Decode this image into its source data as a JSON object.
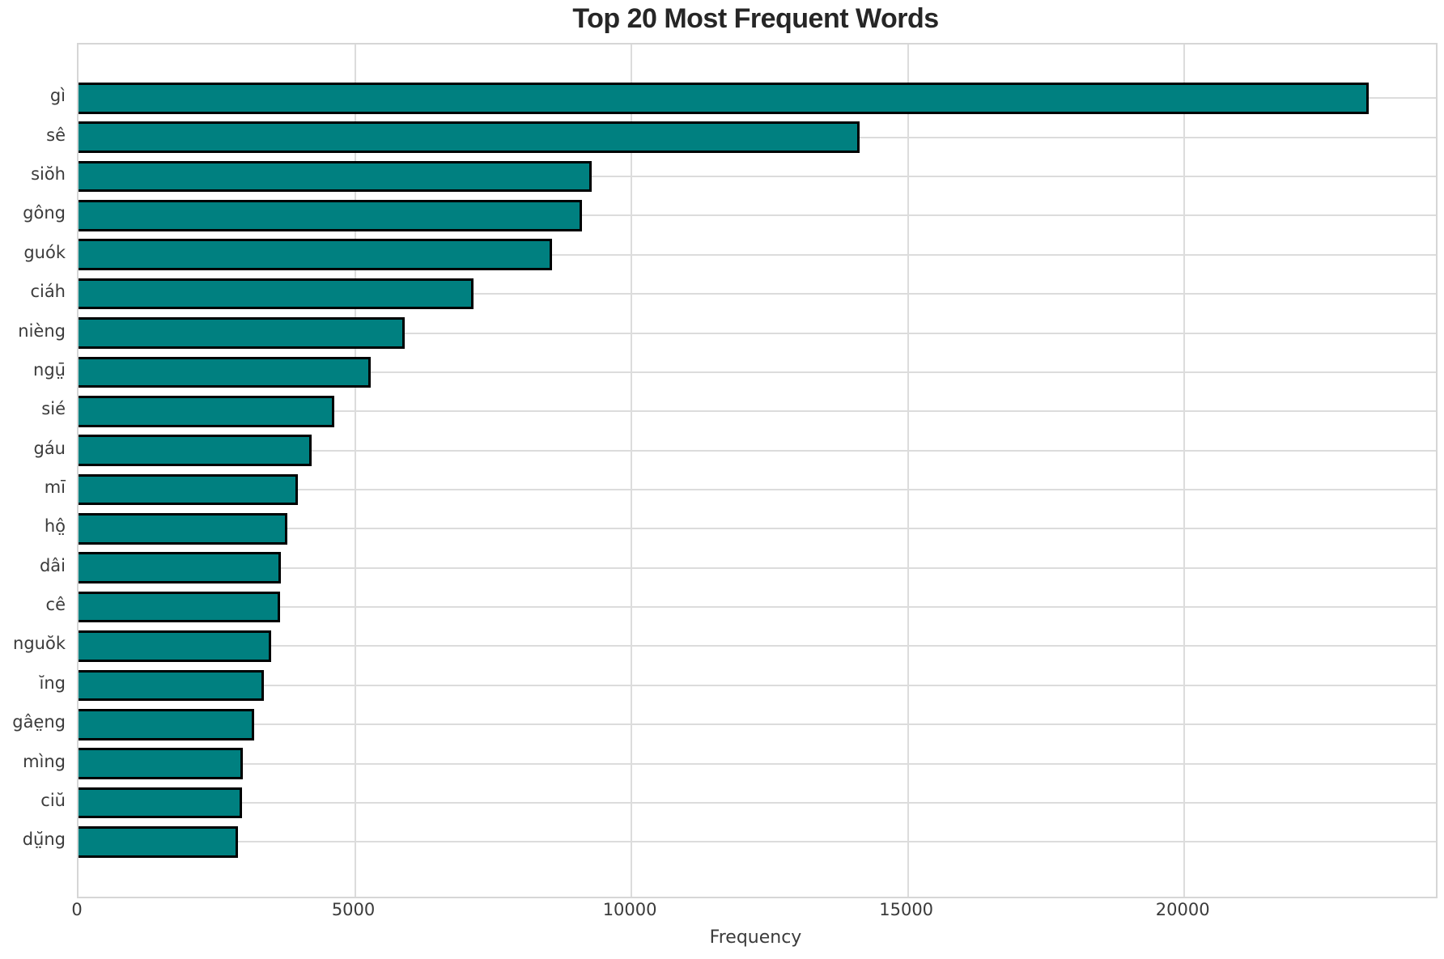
{
  "title": "Top 20 Most Frequent Words",
  "chart_data": {
    "type": "bar",
    "orientation": "horizontal",
    "title": "Top 20 Most Frequent Words",
    "xlabel": "Frequency",
    "ylabel": "",
    "categories": [
      "gì",
      "sê",
      "siŏh",
      "gông",
      "guók",
      "ciáh",
      "nièng",
      "ngṳ̄",
      "sié",
      "gáu",
      "mī",
      "hô̤",
      "dâi",
      "cê",
      "nguŏk",
      "ĭng",
      "gâe̤ng",
      "mìng",
      "ciŭ",
      "dṳ̆ng"
    ],
    "values": [
      23340,
      14120,
      9280,
      9100,
      8560,
      7145,
      5900,
      5285,
      4630,
      4210,
      3960,
      3780,
      3660,
      3650,
      3480,
      3350,
      3180,
      2965,
      2960,
      2890
    ],
    "xlim": [
      0,
      24550
    ],
    "xticks": [
      0,
      5000,
      10000,
      15000,
      20000
    ],
    "xtick_labels": [
      "0",
      "5000",
      "10000",
      "15000",
      "20000"
    ],
    "grid": true,
    "legend": "none",
    "bar_color": "#008080",
    "bar_edge_color": "#000000",
    "grid_color": "#dcdcdc"
  }
}
